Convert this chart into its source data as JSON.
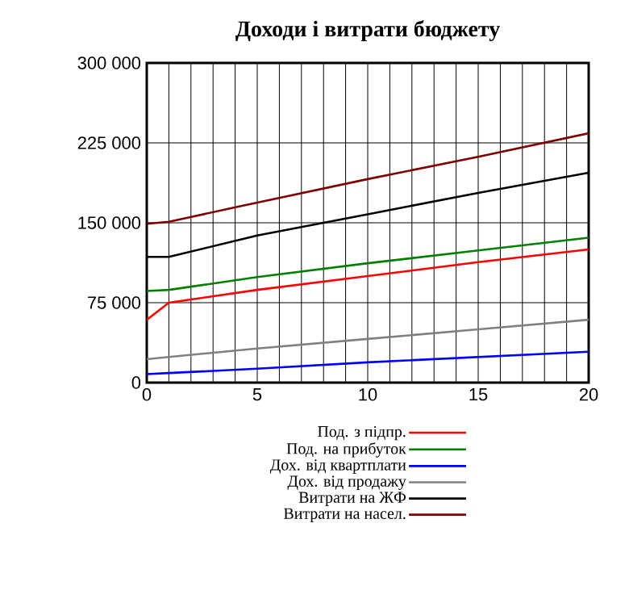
{
  "chart_data": {
    "type": "line",
    "title": "Доходи і витрати бюджету",
    "xlim": [
      0,
      20
    ],
    "xticks": [
      0,
      {
        "value": 1,
        "label": null
      },
      {
        "value": 2,
        "label": null
      },
      {
        "value": 3,
        "label": null
      },
      {
        "value": 4,
        "label": null
      },
      5,
      {
        "value": 6,
        "label": null
      },
      {
        "value": 7,
        "label": null
      },
      {
        "value": 8,
        "label": null
      },
      {
        "value": 9,
        "label": null
      },
      10,
      {
        "value": 11,
        "label": null
      },
      {
        "value": 12,
        "label": null
      },
      {
        "value": 13,
        "label": null
      },
      {
        "value": 14,
        "label": null
      },
      15,
      {
        "value": 16,
        "label": null
      },
      {
        "value": 17,
        "label": null
      },
      {
        "value": 18,
        "label": null
      },
      {
        "value": 19,
        "label": null
      },
      20
    ],
    "ylim": [
      0,
      300000
    ],
    "yticks": [
      0,
      {
        "value": 75000,
        "label": "75 000"
      },
      {
        "value": 150000,
        "label": "150 000"
      },
      {
        "value": 225000,
        "label": "225 000"
      },
      {
        "value": 300000,
        "label": "300 000"
      }
    ],
    "grid": true,
    "legend": "bottom",
    "marker": "none",
    "line_style": "solid",
    "series": [
      {
        "name": "Под. з підпр.",
        "color": "#ff0000",
        "x": [
          0,
          1,
          5,
          10,
          15,
          20
        ],
        "values": [
          59000,
          75000,
          87000,
          100000,
          113000,
          125000
        ]
      },
      {
        "name": "Под. на прибуток",
        "color": "#008000",
        "x": [
          0,
          1,
          5,
          10,
          15,
          20
        ],
        "values": [
          86000,
          87000,
          99000,
          112000,
          124000,
          136000
        ]
      },
      {
        "name": "Дох. від квартплати",
        "color": "#0000ff",
        "x": [
          0,
          1,
          5,
          10,
          15,
          20
        ],
        "values": [
          8000,
          9000,
          13000,
          19000,
          24000,
          29000
        ]
      },
      {
        "name": "Дох. від продажу",
        "color": "#808080",
        "x": [
          0,
          1,
          5,
          10,
          15,
          20
        ],
        "values": [
          22000,
          24000,
          32000,
          41000,
          50000,
          59000
        ]
      },
      {
        "name": "Витрати на ЖФ",
        "color": "#000000",
        "x": [
          0,
          1,
          5,
          10,
          15,
          20
        ],
        "values": [
          118000,
          118000,
          138000,
          158000,
          178000,
          197000
        ]
      },
      {
        "name": "Витрати на насел.",
        "color": "#800000",
        "x": [
          0,
          1,
          5,
          10,
          15,
          20
        ],
        "values": [
          149000,
          151000,
          169000,
          191000,
          212000,
          234000
        ]
      }
    ]
  }
}
